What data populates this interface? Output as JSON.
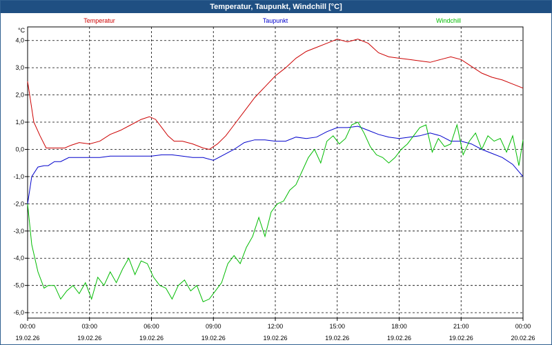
{
  "window": {
    "title": "Temperatur, Taupunkt, Windchill [°C]"
  },
  "colors": {
    "titlebar": "#1f4f82",
    "temperature": "#cc0000",
    "dewpoint": "#0000cc",
    "windchill": "#00bb00",
    "grid": "#000000"
  },
  "chart_data": {
    "type": "line",
    "title": "Temperatur, Taupunkt, Windchill [°C]",
    "ylabel": "°C",
    "ylim": [
      -6.2,
      4.5
    ],
    "xlim": [
      0,
      24
    ],
    "yticks": [
      -6,
      -5,
      -4,
      -3,
      -2,
      -1,
      0,
      1,
      2,
      3,
      4
    ],
    "ytick_labels": [
      "-6,0",
      "-5,0",
      "-4,0",
      "-3,0",
      "-2,0",
      "-1,0",
      "0,0",
      "1,0",
      "2,0",
      "3,0",
      "4,0"
    ],
    "xticks": [
      0,
      3,
      6,
      9,
      12,
      15,
      18,
      21,
      24
    ],
    "xtick_labels": [
      {
        "time": "00:00",
        "date": "19.02.26"
      },
      {
        "time": "03:00",
        "date": "19.02.26"
      },
      {
        "time": "06:00",
        "date": "19.02.26"
      },
      {
        "time": "09:00",
        "date": "19.02.26"
      },
      {
        "time": "12:00",
        "date": "19.02.26"
      },
      {
        "time": "15:00",
        "date": "19.02.26"
      },
      {
        "time": "18:00",
        "date": "19.02.26"
      },
      {
        "time": "21:00",
        "date": "19.02.26"
      },
      {
        "time": "00:00",
        "date": "20.02.26"
      }
    ],
    "grid": true,
    "series": [
      {
        "name": "Temperatur",
        "color": "#cc0000",
        "x": [
          0,
          0.3,
          0.6,
          0.9,
          1.2,
          1.5,
          1.8,
          2.1,
          2.5,
          3,
          3.5,
          4,
          4.5,
          5,
          5.5,
          5.9,
          6.2,
          6.5,
          6.8,
          7.1,
          7.5,
          8,
          8.5,
          8.8,
          9.2,
          9.6,
          10,
          10.5,
          11,
          11.5,
          12,
          12.5,
          13,
          13.5,
          14,
          14.5,
          15,
          15.5,
          16,
          16.5,
          17,
          17.5,
          18,
          18.5,
          19,
          19.5,
          20,
          20.5,
          21,
          21.5,
          22,
          22.5,
          23,
          23.5,
          24
        ],
        "values": [
          2.5,
          1.0,
          0.5,
          0.05,
          0.05,
          0.05,
          0.05,
          0.15,
          0.25,
          0.2,
          0.3,
          0.55,
          0.7,
          0.9,
          1.1,
          1.2,
          1.1,
          0.8,
          0.5,
          0.3,
          0.3,
          0.2,
          0.05,
          0.0,
          0.2,
          0.5,
          0.9,
          1.4,
          1.9,
          2.3,
          2.7,
          3.0,
          3.35,
          3.6,
          3.75,
          3.9,
          4.05,
          3.95,
          4.05,
          3.9,
          3.55,
          3.4,
          3.35,
          3.3,
          3.25,
          3.2,
          3.3,
          3.4,
          3.3,
          3.05,
          2.8,
          2.65,
          2.55,
          2.4,
          2.25
        ]
      },
      {
        "name": "Taupunkt",
        "color": "#0000cc",
        "x": [
          0,
          0.2,
          0.5,
          0.8,
          1,
          1.3,
          1.6,
          2,
          2.5,
          3,
          3.5,
          4,
          4.5,
          5,
          5.5,
          6,
          6.5,
          7,
          7.5,
          8,
          8.5,
          9,
          9.5,
          10,
          10.5,
          11,
          11.5,
          12,
          12.5,
          13,
          13.5,
          14,
          14.5,
          15,
          15.5,
          16,
          16.5,
          17,
          17.5,
          18,
          18.5,
          19,
          19.5,
          20,
          20.5,
          21,
          21.5,
          22,
          22.5,
          23,
          23.5,
          24
        ],
        "values": [
          -2.0,
          -1.0,
          -0.65,
          -0.6,
          -0.6,
          -0.45,
          -0.45,
          -0.3,
          -0.3,
          -0.3,
          -0.3,
          -0.25,
          -0.25,
          -0.25,
          -0.25,
          -0.25,
          -0.2,
          -0.2,
          -0.25,
          -0.3,
          -0.3,
          -0.4,
          -0.2,
          0.0,
          0.25,
          0.35,
          0.35,
          0.3,
          0.3,
          0.45,
          0.4,
          0.45,
          0.65,
          0.8,
          0.8,
          0.85,
          0.7,
          0.55,
          0.45,
          0.4,
          0.45,
          0.5,
          0.6,
          0.5,
          0.3,
          0.3,
          0.2,
          0.0,
          -0.15,
          -0.3,
          -0.55,
          -1.0
        ]
      },
      {
        "name": "Windchill",
        "color": "#00bb00",
        "x": [
          0,
          0.2,
          0.5,
          0.8,
          1,
          1.3,
          1.6,
          1.9,
          2.2,
          2.5,
          2.8,
          3.1,
          3.4,
          3.7,
          4,
          4.3,
          4.6,
          4.9,
          5.2,
          5.5,
          5.8,
          6.1,
          6.4,
          6.7,
          7,
          7.3,
          7.6,
          7.9,
          8.2,
          8.5,
          8.8,
          9.1,
          9.4,
          9.7,
          10,
          10.3,
          10.6,
          10.9,
          11.2,
          11.5,
          11.8,
          12.1,
          12.4,
          12.7,
          13,
          13.3,
          13.6,
          13.9,
          14.2,
          14.5,
          14.8,
          15.1,
          15.4,
          15.7,
          16,
          16.3,
          16.6,
          16.9,
          17.2,
          17.5,
          17.8,
          18.1,
          18.4,
          18.7,
          19,
          19.3,
          19.6,
          19.9,
          20.2,
          20.5,
          20.8,
          21.1,
          21.4,
          21.7,
          22,
          22.3,
          22.6,
          22.9,
          23.2,
          23.5,
          23.8,
          24
        ],
        "values": [
          -2.0,
          -3.5,
          -4.5,
          -5.1,
          -5.0,
          -5.0,
          -5.5,
          -5.2,
          -5.0,
          -5.3,
          -4.9,
          -5.5,
          -4.7,
          -5.0,
          -4.5,
          -4.9,
          -4.4,
          -4.0,
          -4.6,
          -4.1,
          -4.2,
          -4.7,
          -5.0,
          -5.1,
          -5.5,
          -5.0,
          -4.8,
          -5.2,
          -5.0,
          -5.6,
          -5.5,
          -5.2,
          -4.9,
          -4.2,
          -3.9,
          -4.2,
          -3.6,
          -3.2,
          -2.5,
          -3.2,
          -2.3,
          -2.0,
          -1.9,
          -1.5,
          -1.3,
          -0.8,
          -0.3,
          0.0,
          -0.5,
          0.3,
          0.5,
          0.2,
          0.4,
          0.9,
          1.0,
          0.6,
          0.1,
          -0.2,
          -0.3,
          -0.5,
          -0.3,
          0.0,
          0.2,
          0.5,
          0.8,
          0.9,
          -0.1,
          0.4,
          0.1,
          0.2,
          0.9,
          -0.2,
          0.3,
          0.6,
          0.0,
          0.5,
          0.3,
          0.4,
          -0.1,
          0.5,
          -0.6,
          0.35
        ]
      }
    ]
  }
}
